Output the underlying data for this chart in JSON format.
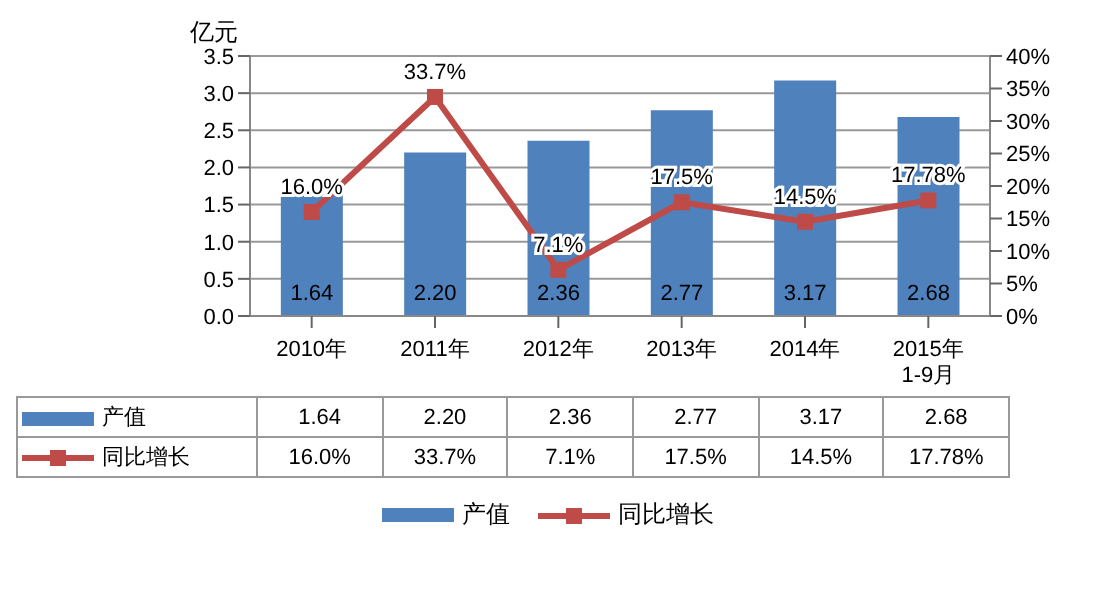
{
  "chart_data": {
    "type": "bar",
    "ylabel": "亿元",
    "categories": [
      "2010年",
      "2011年",
      "2012年",
      "2013年",
      "2014年",
      "2015年\n1-9月"
    ],
    "series": [
      {
        "name": "产值",
        "color": "#4f81bd",
        "values": [
          1.64,
          2.2,
          2.36,
          2.77,
          3.17,
          2.68
        ],
        "value_labels": [
          "1.64",
          "2.20",
          "2.36",
          "2.77",
          "3.17",
          "2.68"
        ]
      },
      {
        "name": "同比增长",
        "type": "line",
        "axis": "y2",
        "color": "#be4b48",
        "marker": "square",
        "values": [
          16.0,
          33.7,
          7.1,
          17.5,
          14.5,
          17.78
        ],
        "value_labels": [
          "16.0%",
          "33.7%",
          "7.1%",
          "17.5%",
          "14.5%",
          "17.78%"
        ]
      }
    ],
    "ylim": [
      0,
      3.5
    ],
    "yticks": [
      {
        "value": 0,
        "label": "0.0"
      },
      {
        "value": 0.5,
        "label": "0.5"
      },
      {
        "value": 1,
        "label": "1.0"
      },
      {
        "value": 1.5,
        "label": "1.5"
      },
      {
        "value": 2,
        "label": "2.0"
      },
      {
        "value": 2.5,
        "label": "2.5"
      },
      {
        "value": 3,
        "label": "3.0"
      },
      {
        "value": 3.5,
        "label": "3.5"
      }
    ],
    "y2lim": [
      0,
      40
    ],
    "y2ticks": [
      {
        "value": 0,
        "label": "0%"
      },
      {
        "value": 5,
        "label": "5%"
      },
      {
        "value": 10,
        "label": "10%"
      },
      {
        "value": 15,
        "label": "15%"
      },
      {
        "value": 20,
        "label": "20%"
      },
      {
        "value": 25,
        "label": "25%"
      },
      {
        "value": 30,
        "label": "30%"
      },
      {
        "value": 35,
        "label": "35%"
      },
      {
        "value": 40,
        "label": "40%"
      }
    ],
    "grid": "y",
    "legend": "bottom"
  }
}
